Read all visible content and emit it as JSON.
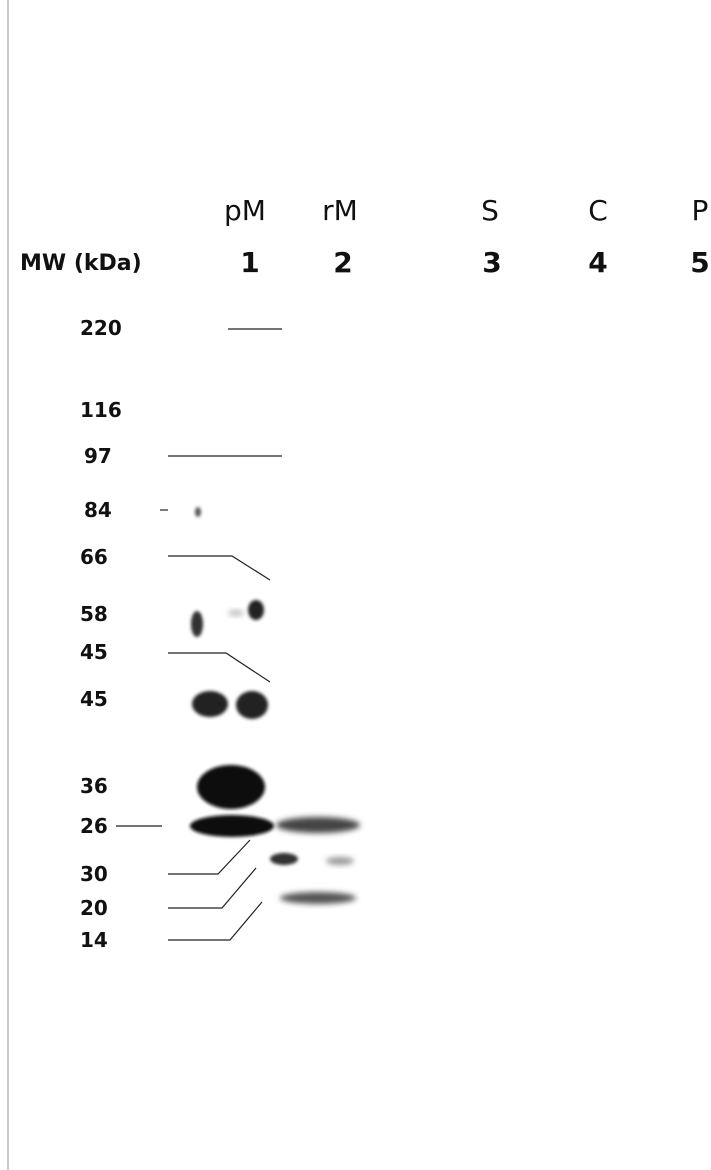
{
  "lanes": [
    {
      "label": "pM",
      "number": "1"
    },
    {
      "label": "rM",
      "number": "2"
    },
    {
      "label": "S",
      "number": "3"
    },
    {
      "label": "C",
      "number": "4"
    },
    {
      "label": "P",
      "number": "5"
    }
  ],
  "mw_header": "MW (kDa)",
  "markers": [
    "220",
    "116",
    "97",
    "84",
    "66",
    "58",
    "45",
    "45",
    "36",
    "26",
    "30",
    "20",
    "14"
  ]
}
